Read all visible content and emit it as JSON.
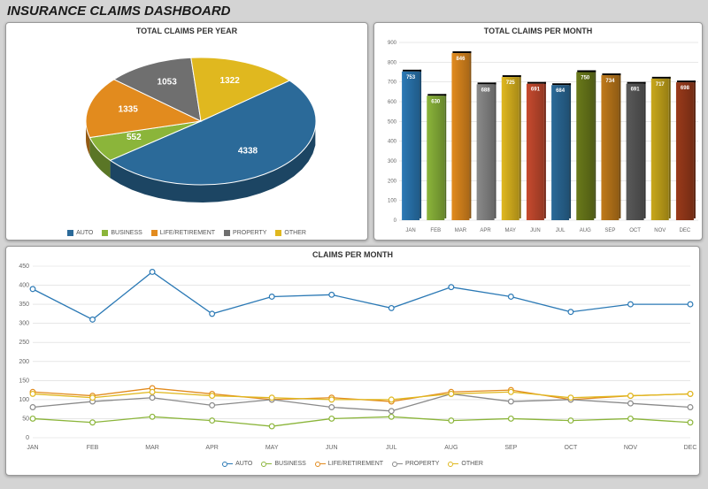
{
  "title": "INSURANCE CLAIMS DASHBOARD",
  "colors": {
    "auto": "#2b6a99",
    "business": "#8bb53a",
    "life": "#e28b1e",
    "property": "#6f6f6f",
    "other": "#e0b81f"
  },
  "pie_chart": {
    "title": "TOTAL CLAIMS PER YEAR",
    "title_fontsize": 9,
    "type": "pie",
    "background_color": "#ffffff",
    "slices": [
      {
        "label": "AUTO",
        "value": 4338,
        "color": "#2b6a99"
      },
      {
        "label": "BUSINESS",
        "value": 552,
        "color": "#8bb53a"
      },
      {
        "label": "LIFE/RETIREMENT",
        "value": 1335,
        "color": "#e28b1e"
      },
      {
        "label": "PROPERTY",
        "value": 1053,
        "color": "#6f6f6f"
      },
      {
        "label": "OTHER",
        "value": 1322,
        "color": "#e0b81f"
      }
    ],
    "legend_labels": [
      "AUTO",
      "BUSINESS",
      "LIFE/RETIREMENT",
      "PROPERTY",
      "OTHER"
    ]
  },
  "bar_chart": {
    "title": "TOTAL CLAIMS PER MONTH",
    "title_fontsize": 9,
    "type": "bar",
    "background_color": "#ffffff",
    "grid_color": "#d0d0d0",
    "ylim": [
      0,
      900
    ],
    "ytick_step": 100,
    "label_fontsize": 6,
    "categories": [
      "JAN",
      "FEB",
      "MAR",
      "APR",
      "MAY",
      "JUN",
      "JUL",
      "AUG",
      "SEP",
      "OCT",
      "NOV",
      "DEC"
    ],
    "bars": [
      {
        "value": 753,
        "color": "#2b79b5"
      },
      {
        "value": 630,
        "color": "#8bb53a"
      },
      {
        "value": 846,
        "color": "#e28b1e"
      },
      {
        "value": 688,
        "color": "#8a8a8a"
      },
      {
        "value": 725,
        "color": "#e0b81f"
      },
      {
        "value": 691,
        "color": "#c74a2e"
      },
      {
        "value": 684,
        "color": "#2b6a99"
      },
      {
        "value": 750,
        "color": "#6a7a1a"
      },
      {
        "value": 734,
        "color": "#c07a1a"
      },
      {
        "value": 691,
        "color": "#5a5a5a"
      },
      {
        "value": 717,
        "color": "#c9a81a"
      },
      {
        "value": 698,
        "color": "#9a3a1a"
      }
    ]
  },
  "line_chart": {
    "title": "CLAIMS PER MONTH",
    "title_fontsize": 9,
    "type": "line",
    "background_color": "#ffffff",
    "grid_color": "#d8d8d8",
    "ylim": [
      0,
      450
    ],
    "ytick_step": 50,
    "label_fontsize": 7,
    "marker_size": 4,
    "line_width": 1.3,
    "categories": [
      "JAN",
      "FEB",
      "MAR",
      "APR",
      "MAY",
      "JUN",
      "JUL",
      "AUG",
      "SEP",
      "OCT",
      "NOV",
      "DEC"
    ],
    "series": [
      {
        "name": "AUTO",
        "color": "#2b79b5",
        "values": [
          390,
          310,
          435,
          325,
          370,
          375,
          340,
          395,
          370,
          330,
          350,
          350
        ]
      },
      {
        "name": "BUSINESS",
        "color": "#8bb53a",
        "values": [
          50,
          40,
          55,
          45,
          30,
          50,
          55,
          45,
          50,
          45,
          50,
          40
        ]
      },
      {
        "name": "LIFE/RETIREMENT",
        "color": "#e28b1e",
        "values": [
          120,
          110,
          130,
          115,
          100,
          105,
          95,
          120,
          125,
          100,
          110,
          115
        ]
      },
      {
        "name": "PROPERTY",
        "color": "#8a8a8a",
        "values": [
          80,
          95,
          105,
          85,
          100,
          80,
          70,
          115,
          95,
          100,
          90,
          80
        ]
      },
      {
        "name": "OTHER",
        "color": "#e0b81f",
        "values": [
          115,
          105,
          120,
          110,
          105,
          100,
          100,
          115,
          120,
          105,
          110,
          115
        ]
      }
    ],
    "legend_labels": [
      "AUTO",
      "BUSINESS",
      "LIFE/RETIREMENT",
      "PROPERTY",
      "OTHER"
    ]
  }
}
